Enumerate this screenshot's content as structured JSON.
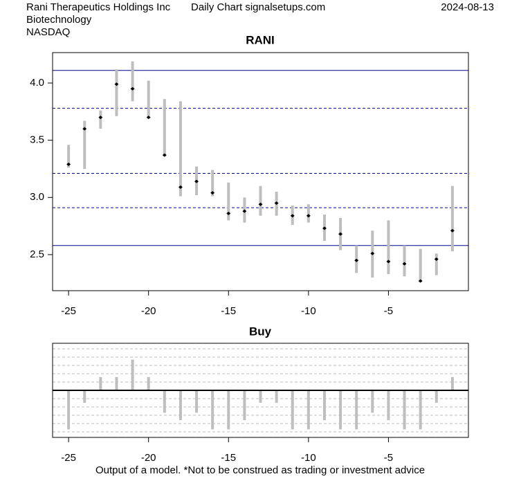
{
  "header": {
    "company": "Rani Therapeutics Holdings Inc",
    "source": "Daily Chart signalsetups.com",
    "date": "2024-08-13",
    "sector": "Biotechnology",
    "exchange": "NASDAQ"
  },
  "footer": "Output of a model. *Not to be construed as trading or investment advice",
  "chart_data": [
    {
      "type": "range",
      "title": "RANI",
      "x": [
        -25,
        -24,
        -23,
        -22,
        -21,
        -20,
        -19,
        -18,
        -17,
        -16,
        -15,
        -14,
        -13,
        -12,
        -11,
        -10,
        -9,
        -8,
        -7,
        -6,
        -5,
        -4,
        -3,
        -2,
        -1
      ],
      "high": [
        3.46,
        3.67,
        3.76,
        4.12,
        4.19,
        4.02,
        3.86,
        3.84,
        3.27,
        3.24,
        3.13,
        3.0,
        3.1,
        3.05,
        2.93,
        2.94,
        2.85,
        2.82,
        2.58,
        2.71,
        2.8,
        2.58,
        2.55,
        2.51,
        3.1
      ],
      "low": [
        3.26,
        3.25,
        3.6,
        3.71,
        3.84,
        3.69,
        3.36,
        3.01,
        3.02,
        3.01,
        2.8,
        2.78,
        2.84,
        2.84,
        2.76,
        2.78,
        2.62,
        2.54,
        2.34,
        2.3,
        2.33,
        2.31,
        2.26,
        2.32,
        2.53
      ],
      "close": [
        3.29,
        3.6,
        3.7,
        3.99,
        3.95,
        3.7,
        3.37,
        3.09,
        3.14,
        3.04,
        2.86,
        2.88,
        2.94,
        2.95,
        2.84,
        2.84,
        2.73,
        2.68,
        2.45,
        2.51,
        2.44,
        2.42,
        2.27,
        2.46,
        2.71
      ],
      "bar_color": "#bebebe",
      "close_color": "#000000",
      "levels": [
        {
          "value": 4.11,
          "style": "solid"
        },
        {
          "value": 3.78,
          "style": "dashed"
        },
        {
          "value": 3.21,
          "style": "dashed"
        },
        {
          "value": 2.91,
          "style": "dashed"
        },
        {
          "value": 2.58,
          "style": "solid"
        }
      ],
      "level_color": "#00008b",
      "xlim": [
        -26,
        0
      ],
      "xticks": [
        -25,
        -20,
        -15,
        -10,
        -5
      ],
      "ylim": [
        2.185,
        4.266
      ],
      "yticks": [
        2.5,
        {
          "value": 3,
          "label": "3.0"
        },
        3.5,
        {
          "value": 4,
          "label": "4.0"
        }
      ]
    },
    {
      "type": "bar",
      "title": "Buy",
      "x": [
        -25,
        -24,
        -23,
        -22,
        -21,
        -20,
        -19,
        -18,
        -17,
        -16,
        -15,
        -14,
        -13,
        -12,
        -11,
        -10,
        -9,
        -8,
        -7,
        -6,
        -5,
        -4,
        -3,
        -2,
        -1
      ],
      "values": [
        -4.7,
        -1.5,
        1.6,
        1.6,
        3.7,
        1.6,
        -2.7,
        -3.6,
        -2.7,
        -4.7,
        -4.7,
        -3.6,
        -1.5,
        -1.5,
        -4.7,
        -4.7,
        -3.6,
        -4.7,
        -4.7,
        -2.7,
        -3.6,
        -4.7,
        -4.7,
        -1.5,
        1.6
      ],
      "color": "#bebebe",
      "xlim": [
        -26,
        0
      ],
      "xticks": [
        -25,
        -20,
        -15,
        -10,
        -5
      ],
      "ylim": [
        -5.67,
        5.67
      ],
      "grid_values": [
        -5,
        -4,
        -3,
        -2,
        -1,
        1,
        2,
        3,
        4,
        5
      ]
    }
  ]
}
